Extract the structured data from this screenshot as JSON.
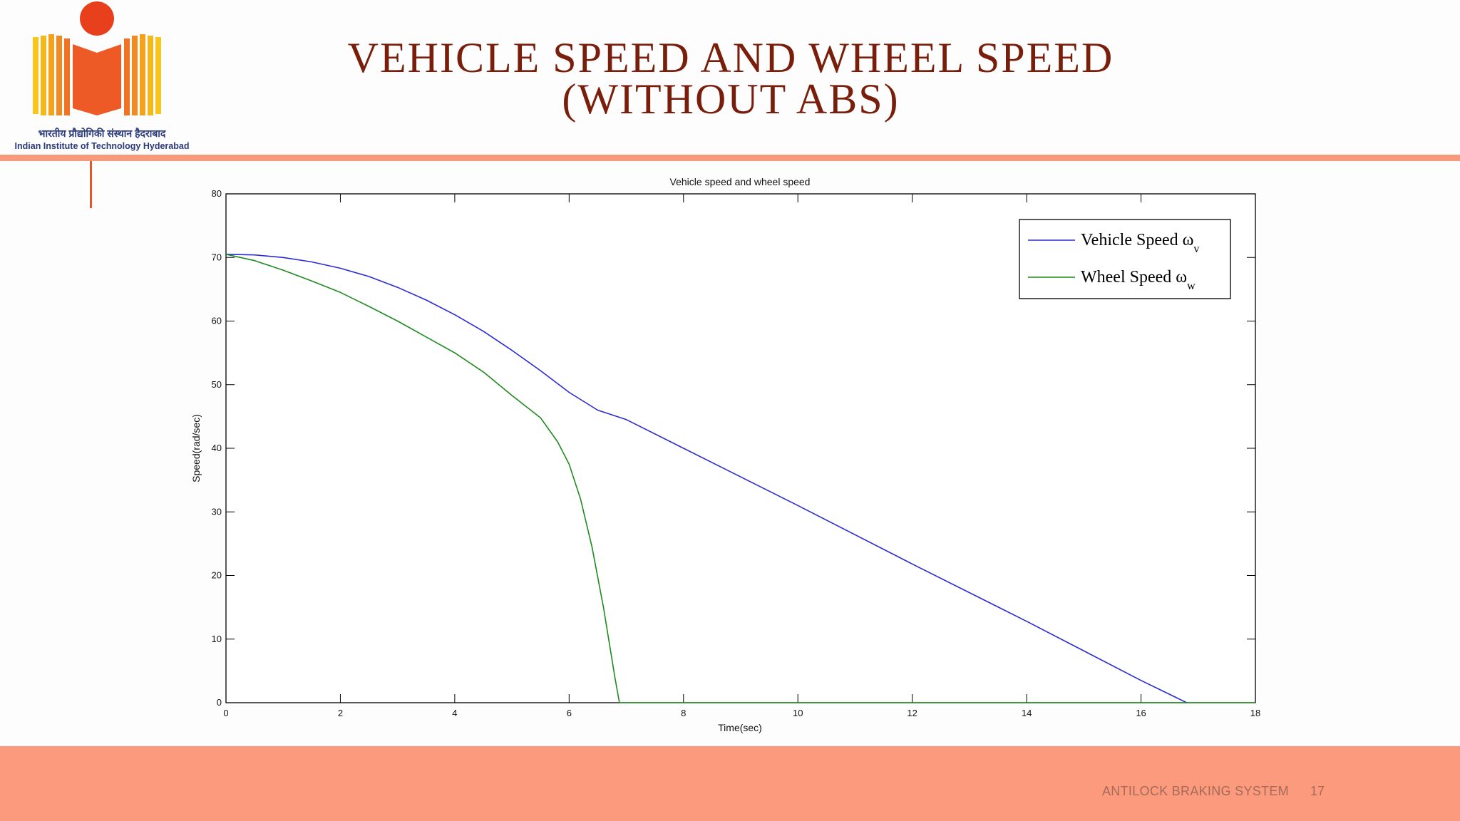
{
  "slide": {
    "title_line1": "VEHICLE SPEED AND WHEEL SPEED",
    "title_line2": "(WITHOUT ABS)",
    "logo_hindi": "भारतीय प्रौद्योगिकी संस्थान हैदराबाद",
    "logo_english": "Indian Institute of Technology Hyderabad",
    "footer_label": "ANTILOCK BRAKING SYSTEM",
    "page_number": "17"
  },
  "colors": {
    "title": "#7a1e0c",
    "accent_band": "#fc9a7e",
    "vehicle_series": "#2b2bd6",
    "wheel_series": "#1f8a1f"
  },
  "chart_data": {
    "type": "line",
    "title": "Vehicle speed and wheel speed",
    "xlabel": "Time(sec)",
    "ylabel": "Speed(rad/sec)",
    "xlim": [
      0,
      18
    ],
    "ylim": [
      0,
      80
    ],
    "xticks": [
      0,
      2,
      4,
      6,
      8,
      10,
      12,
      14,
      16,
      18
    ],
    "yticks": [
      0,
      10,
      20,
      30,
      40,
      50,
      60,
      70,
      80
    ],
    "grid": false,
    "legend_position": "top-right",
    "series": [
      {
        "name": "Vehicle Speed ω",
        "subscript": "v",
        "color": "#2b2bd6",
        "points": [
          [
            0,
            70.5
          ],
          [
            0.5,
            70.4
          ],
          [
            1,
            70
          ],
          [
            1.5,
            69.3
          ],
          [
            2,
            68.3
          ],
          [
            2.5,
            67
          ],
          [
            3,
            65.3
          ],
          [
            3.5,
            63.3
          ],
          [
            4,
            61
          ],
          [
            4.5,
            58.4
          ],
          [
            5,
            55.4
          ],
          [
            5.5,
            52.2
          ],
          [
            6,
            48.8
          ],
          [
            6.5,
            46
          ],
          [
            7,
            44.5
          ],
          [
            8,
            40
          ],
          [
            10,
            31
          ],
          [
            12,
            21.8
          ],
          [
            14,
            12.8
          ],
          [
            16,
            3.5
          ],
          [
            16.8,
            0
          ]
        ]
      },
      {
        "name": "Wheel Speed ω",
        "subscript": "w",
        "color": "#1f8a1f",
        "points": [
          [
            0,
            70.5
          ],
          [
            0.5,
            69.5
          ],
          [
            1,
            68
          ],
          [
            1.5,
            66.3
          ],
          [
            2,
            64.5
          ],
          [
            2.5,
            62.3
          ],
          [
            3,
            60
          ],
          [
            3.5,
            57.5
          ],
          [
            4,
            55
          ],
          [
            4.5,
            52
          ],
          [
            5,
            48.3
          ],
          [
            5.5,
            44.8
          ],
          [
            5.8,
            41
          ],
          [
            6,
            37.5
          ],
          [
            6.2,
            32
          ],
          [
            6.4,
            24.5
          ],
          [
            6.6,
            15
          ],
          [
            6.8,
            4
          ],
          [
            6.88,
            0
          ],
          [
            18,
            0
          ]
        ]
      }
    ]
  }
}
